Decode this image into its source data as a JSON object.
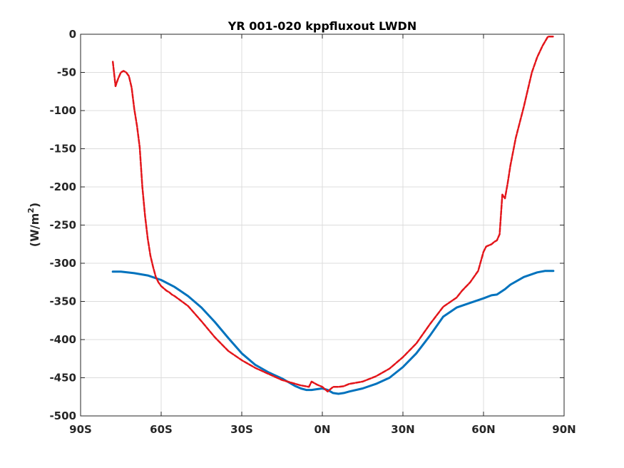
{
  "chart_data": {
    "type": "line",
    "title": "YR 001-020 kppfluxout LWDN",
    "ylabel": "(W/m",
    "ylabel_sup": "2",
    "ylabel_tail": ")",
    "xlabel": "",
    "xlim": [
      -90,
      90
    ],
    "ylim": [
      -500,
      0
    ],
    "grid": true,
    "xticks": [
      {
        "value": -90,
        "label": "90S"
      },
      {
        "value": -60,
        "label": "60S"
      },
      {
        "value": -30,
        "label": "30S"
      },
      {
        "value": 0,
        "label": "0N"
      },
      {
        "value": 30,
        "label": "30N"
      },
      {
        "value": 60,
        "label": "60N"
      },
      {
        "value": 90,
        "label": "90N"
      }
    ],
    "yticks": [
      {
        "value": 0,
        "label": "0"
      },
      {
        "value": -50,
        "label": "-50"
      },
      {
        "value": -100,
        "label": "-100"
      },
      {
        "value": -150,
        "label": "-150"
      },
      {
        "value": -200,
        "label": "-200"
      },
      {
        "value": -250,
        "label": "-250"
      },
      {
        "value": -300,
        "label": "-300"
      },
      {
        "value": -350,
        "label": "-350"
      },
      {
        "value": -400,
        "label": "-400"
      },
      {
        "value": -450,
        "label": "-450"
      },
      {
        "value": -500,
        "label": "-500"
      }
    ],
    "series": [
      {
        "color": "#0072bd",
        "style": "solid",
        "x": [
          -78,
          -75,
          -70,
          -65,
          -60,
          -55,
          -50,
          -45,
          -40,
          -35,
          -30,
          -25,
          -20,
          -15,
          -12,
          -10,
          -8,
          -6,
          -4,
          -2,
          0,
          2,
          4,
          6,
          8,
          10,
          15,
          20,
          25,
          30,
          35,
          40,
          45,
          50,
          55,
          60,
          63,
          65,
          68,
          70,
          75,
          80,
          83,
          86
        ],
        "y": [
          -311,
          -311,
          -313,
          -316,
          -322,
          -331,
          -343,
          -358,
          -377,
          -398,
          -418,
          -433,
          -443,
          -451,
          -457,
          -461,
          -464,
          -466,
          -466,
          -465,
          -464,
          -466,
          -470,
          -471,
          -470,
          -468,
          -464,
          -458,
          -450,
          -436,
          -418,
          -395,
          -370,
          -358,
          -352,
          -346,
          -342,
          -341,
          -334,
          -328,
          -318,
          -312,
          -310,
          -310
        ]
      },
      {
        "color": "#e3151a",
        "style": "dashed",
        "x": [
          -78,
          -77,
          -76,
          -75,
          -74,
          -73,
          -72,
          -71,
          -70,
          -69,
          -68,
          -67,
          -66,
          -65,
          -64,
          -63,
          -62,
          -61,
          -60,
          -59,
          -58,
          -57,
          -56,
          -55,
          -50,
          -45,
          -40,
          -35,
          -30,
          -25,
          -20,
          -15,
          -12,
          -10,
          -8,
          -5,
          -4,
          -2,
          0,
          2,
          4,
          6,
          8,
          10,
          15,
          20,
          25,
          30,
          35,
          40,
          45,
          50,
          52,
          55,
          58,
          60,
          61,
          63,
          64,
          65,
          66,
          67,
          68,
          69,
          70,
          72,
          75,
          78,
          80,
          82,
          84,
          86
        ],
        "y": [
          -36,
          -68,
          -58,
          -50,
          -48,
          -50,
          -55,
          -70,
          -98,
          -120,
          -148,
          -200,
          -238,
          -268,
          -290,
          -305,
          -318,
          -325,
          -330,
          -333,
          -336,
          -338,
          -341,
          -343,
          -356,
          -376,
          -397,
          -415,
          -427,
          -437,
          -445,
          -453,
          -456,
          -458,
          -460,
          -462,
          -455,
          -459,
          -462,
          -468,
          -462,
          -462,
          -461,
          -458,
          -455,
          -448,
          -438,
          -423,
          -405,
          -380,
          -357,
          -345,
          -336,
          -325,
          -310,
          -285,
          -278,
          -275,
          -272,
          -270,
          -262,
          -210,
          -215,
          -195,
          -172,
          -136,
          -95,
          -50,
          -30,
          -15,
          -3,
          -3
        ]
      }
    ]
  }
}
